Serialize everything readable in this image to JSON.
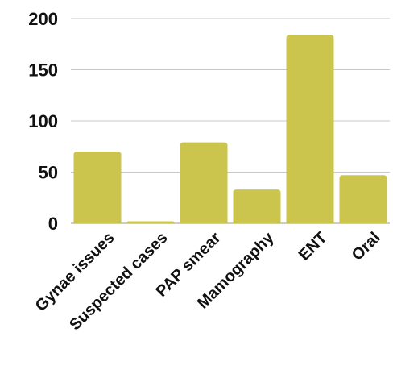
{
  "chart_data": {
    "type": "bar",
    "categories": [
      "Gynae issues",
      "Suspected cases",
      "PAP smear",
      "Mamography",
      "ENT",
      "Oral"
    ],
    "values": [
      70,
      2,
      79,
      33,
      184,
      47
    ],
    "ylim": [
      0,
      200
    ],
    "yticks": [
      0,
      50,
      100,
      150,
      200
    ],
    "yticks_labels": [
      "0",
      "50",
      "100",
      "150",
      "200"
    ],
    "grid": true,
    "legend": "none",
    "bar_color": "#cbc54e"
  }
}
